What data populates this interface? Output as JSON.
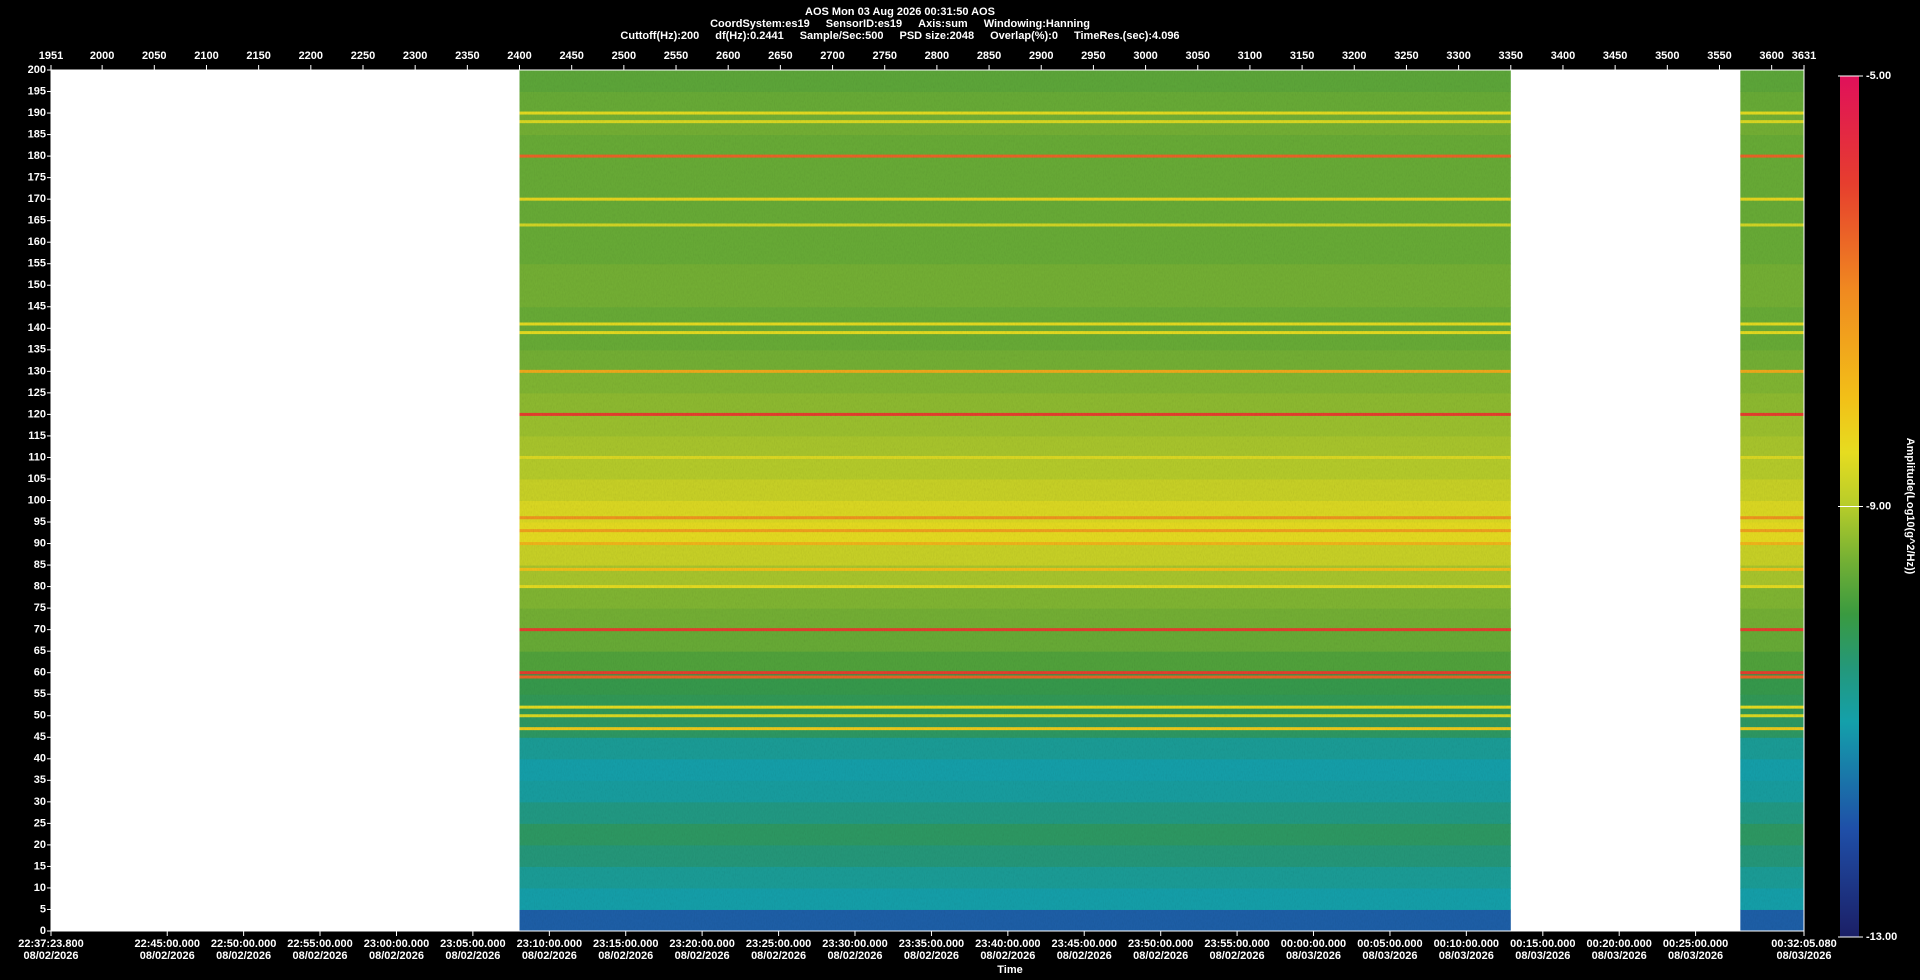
{
  "header": {
    "title": "AOS  Mon 03 Aug 2026 00:31:50  AOS",
    "lines": [
      [
        "CoordSystem:es19",
        "SensorID:es19",
        "Axis:sum",
        "Windowing:Hanning"
      ],
      [
        "Cuttoff(Hz):200",
        "df(Hz):0.2441",
        "Sample/Sec:500",
        "PSD size:2048",
        "Overlap(%):0",
        "TimeRes.(sec):4.096"
      ]
    ]
  },
  "chart_data": {
    "type": "spectrogram",
    "x_label": "Time",
    "colorbar_label": "Amplitude(Log10(g^2/Hz))",
    "xlim": [
      1951,
      3631
    ],
    "xticks": [
      1951,
      2000,
      2050,
      2100,
      2150,
      2200,
      2250,
      2300,
      2350,
      2400,
      2450,
      2500,
      2550,
      2600,
      2650,
      2700,
      2750,
      2800,
      2850,
      2900,
      2950,
      3000,
      3050,
      3100,
      3150,
      3200,
      3250,
      3300,
      3350,
      3400,
      3450,
      3500,
      3550,
      3600,
      3631
    ],
    "time_ticks": [
      {
        "value": 1951,
        "label": "22:37:23.800",
        "date": "08/02/2026"
      },
      {
        "value": 2062.4,
        "label": "22:45:00.000",
        "date": "08/02/2026"
      },
      {
        "value": 2135.6,
        "label": "22:50:00.000",
        "date": "08/02/2026"
      },
      {
        "value": 2208.8,
        "label": "22:55:00.000",
        "date": "08/02/2026"
      },
      {
        "value": 2282.1,
        "label": "23:00:00.000",
        "date": "08/02/2026"
      },
      {
        "value": 2355.3,
        "label": "23:05:00.000",
        "date": "08/02/2026"
      },
      {
        "value": 2428.6,
        "label": "23:10:00.000",
        "date": "08/02/2026"
      },
      {
        "value": 2501.8,
        "label": "23:15:00.000",
        "date": "08/02/2026"
      },
      {
        "value": 2575.0,
        "label": "23:20:00.000",
        "date": "08/02/2026"
      },
      {
        "value": 2648.3,
        "label": "23:25:00.000",
        "date": "08/02/2026"
      },
      {
        "value": 2721.5,
        "label": "23:30:00.000",
        "date": "08/02/2026"
      },
      {
        "value": 2794.8,
        "label": "23:35:00.000",
        "date": "08/02/2026"
      },
      {
        "value": 2868.0,
        "label": "23:40:00.000",
        "date": "08/02/2026"
      },
      {
        "value": 2941.2,
        "label": "23:45:00.000",
        "date": "08/02/2026"
      },
      {
        "value": 3014.5,
        "label": "23:50:00.000",
        "date": "08/02/2026"
      },
      {
        "value": 3087.7,
        "label": "23:55:00.000",
        "date": "08/02/2026"
      },
      {
        "value": 3160.9,
        "label": "00:00:00.000",
        "date": "08/03/2026"
      },
      {
        "value": 3234.2,
        "label": "00:05:00.000",
        "date": "08/03/2026"
      },
      {
        "value": 3307.4,
        "label": "00:10:00.000",
        "date": "08/03/2026"
      },
      {
        "value": 3380.7,
        "label": "00:15:00.000",
        "date": "08/03/2026"
      },
      {
        "value": 3453.9,
        "label": "00:20:00.000",
        "date": "08/03/2026"
      },
      {
        "value": 3527.1,
        "label": "00:25:00.000",
        "date": "08/03/2026"
      },
      {
        "value": 3631,
        "label": "00:32:05.080",
        "date": "08/03/2026"
      }
    ],
    "ylim": [
      0,
      200
    ],
    "yticks": [
      0,
      5,
      10,
      15,
      20,
      25,
      30,
      35,
      40,
      45,
      50,
      55,
      60,
      65,
      70,
      75,
      80,
      85,
      90,
      95,
      100,
      105,
      110,
      115,
      120,
      125,
      130,
      135,
      140,
      145,
      150,
      155,
      160,
      165,
      170,
      175,
      180,
      185,
      190,
      195,
      200
    ],
    "segments": [
      [
        2400,
        3350
      ],
      [
        3570,
        3631
      ]
    ],
    "bands": {
      "edges": [
        0,
        5,
        10,
        15,
        20,
        25,
        30,
        35,
        40,
        45,
        50,
        55,
        60,
        65,
        70,
        75,
        80,
        85,
        90,
        95,
        100,
        105,
        110,
        115,
        120,
        125,
        130,
        135,
        140,
        145,
        150,
        155,
        160,
        165,
        170,
        175,
        180,
        185,
        190,
        195,
        200
      ],
      "values": [
        -11.8,
        -11,
        -10.8,
        -10.5,
        -10.3,
        -10.6,
        -10.9,
        -11,
        -10.8,
        -10.3,
        -10.2,
        -10.1,
        -9.8,
        -9.6,
        -9.5,
        -9.4,
        -9.1,
        -8.8,
        -8.5,
        -8.6,
        -8.8,
        -9.0,
        -9.1,
        -9.2,
        -9.3,
        -9.4,
        -9.5,
        -9.6,
        -9.6,
        -9.5,
        -9.5,
        -9.6,
        -9.6,
        -9.6,
        -9.6,
        -9.6,
        -9.6,
        -9.5,
        -9.6,
        -9.7
      ]
    },
    "lines": [
      {
        "freq": 190,
        "amp": -8.5
      },
      {
        "freq": 188,
        "amp": -8.6
      },
      {
        "freq": 180,
        "amp": -6.5
      },
      {
        "freq": 170,
        "amp": -8.4
      },
      {
        "freq": 164,
        "amp": -8.7
      },
      {
        "freq": 141,
        "amp": -8.5
      },
      {
        "freq": 139,
        "amp": -8.5
      },
      {
        "freq": 130,
        "amp": -7.6
      },
      {
        "freq": 120,
        "amp": -6.0
      },
      {
        "freq": 110,
        "amp": -8.6
      },
      {
        "freq": 96,
        "amp": -7.2
      },
      {
        "freq": 93,
        "amp": -7.4
      },
      {
        "freq": 90,
        "amp": -7.8
      },
      {
        "freq": 84,
        "amp": -8.0
      },
      {
        "freq": 80,
        "amp": -8.5
      },
      {
        "freq": 70,
        "amp": -6.0
      },
      {
        "freq": 60,
        "amp": -6.0
      },
      {
        "freq": 59,
        "amp": -6.5
      },
      {
        "freq": 52,
        "amp": -8.5
      },
      {
        "freq": 50,
        "amp": -8.6
      },
      {
        "freq": 47,
        "amp": -8.2
      }
    ],
    "clim": [
      -13,
      -5
    ],
    "cticks": [
      {
        "value": -5,
        "label": "-5.00"
      },
      {
        "value": -9,
        "label": "-9.00"
      },
      {
        "value": -13,
        "label": "-13.00"
      }
    ],
    "colormap": [
      {
        "value": -13,
        "color": "#1b1f66"
      },
      {
        "value": -12,
        "color": "#1f4fa8"
      },
      {
        "value": -11,
        "color": "#14a0aa"
      },
      {
        "value": -10.5,
        "color": "#24987a"
      },
      {
        "value": -10,
        "color": "#3a9a40"
      },
      {
        "value": -9.5,
        "color": "#74b034"
      },
      {
        "value": -9,
        "color": "#b6cc2a"
      },
      {
        "value": -8.5,
        "color": "#e6dc20"
      },
      {
        "value": -8,
        "color": "#f2c018"
      },
      {
        "value": -7,
        "color": "#f08a20"
      },
      {
        "value": -6,
        "color": "#e63e2e"
      },
      {
        "value": -5,
        "color": "#e0105a"
      }
    ],
    "plot_background": "#ffffff"
  }
}
